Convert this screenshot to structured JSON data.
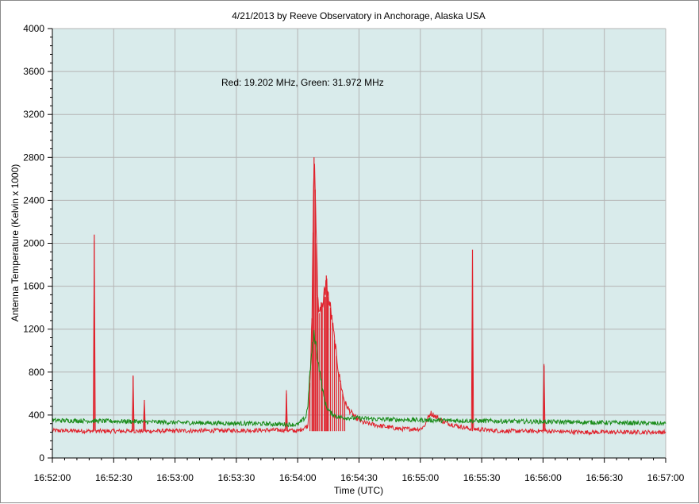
{
  "chart_data": {
    "type": "line",
    "title": "4/21/2013  by  Reeve Observatory  in  Anchorage, Alaska  USA",
    "annotation": "Red: 19.202 MHz, Green: 31.972 MHz",
    "xlabel": "Time (UTC)",
    "ylabel": "Antenna Temperature (Kelvin x 1000)",
    "x_unit": "seconds since 16:52:00 (UTC)",
    "xlim": [
      0,
      300
    ],
    "ylim": [
      0,
      4000
    ],
    "x_ticks": [
      "16:52:00",
      "16:52:30",
      "16:53:00",
      "16:53:30",
      "16:54:00",
      "16:54:30",
      "16:55:00",
      "16:55:30",
      "16:56:00",
      "16:56:30",
      "16:57:00"
    ],
    "y_ticks": [
      "0",
      "400",
      "800",
      "1200",
      "1600",
      "2000",
      "2400",
      "2800",
      "3200",
      "3600",
      "4000"
    ],
    "grid": true,
    "plot_background": "#d9ebeb",
    "series": [
      {
        "name": "Red: 19.202 MHz",
        "color": "#e0202a",
        "baseline": 250,
        "points": [
          [
            0,
            255
          ],
          [
            20,
            250
          ],
          [
            20.5,
            2080
          ],
          [
            21,
            250
          ],
          [
            39,
            250
          ],
          [
            39.5,
            760
          ],
          [
            40,
            250
          ],
          [
            44.5,
            250
          ],
          [
            45,
            540
          ],
          [
            45.5,
            250
          ],
          [
            114,
            260
          ],
          [
            114.5,
            600
          ],
          [
            115,
            260
          ],
          [
            120,
            250
          ],
          [
            125,
            300
          ],
          [
            126,
            700
          ],
          [
            127,
            1300
          ],
          [
            127.5,
            2100
          ],
          [
            128,
            2800
          ],
          [
            128.6,
            2500
          ],
          [
            129.2,
            2000
          ],
          [
            129.8,
            1500
          ],
          [
            130.5,
            1350
          ],
          [
            131.5,
            1450
          ],
          [
            132,
            1400
          ],
          [
            133,
            1550
          ],
          [
            133.5,
            1500
          ],
          [
            134,
            1700
          ],
          [
            134.5,
            1550
          ],
          [
            135,
            1500
          ],
          [
            136,
            1400
          ],
          [
            137,
            1250
          ],
          [
            138,
            1100
          ],
          [
            139,
            950
          ],
          [
            140,
            800
          ],
          [
            141,
            700
          ],
          [
            142,
            600
          ],
          [
            143,
            520
          ],
          [
            145,
            450
          ],
          [
            148,
            380
          ],
          [
            152,
            330
          ],
          [
            160,
            300
          ],
          [
            170,
            270
          ],
          [
            180,
            270
          ],
          [
            182,
            300
          ],
          [
            185,
            420
          ],
          [
            188,
            380
          ],
          [
            192,
            330
          ],
          [
            200,
            290
          ],
          [
            205,
            270
          ],
          [
            205.5,
            1940
          ],
          [
            206,
            270
          ],
          [
            220,
            250
          ],
          [
            230,
            250
          ],
          [
            240,
            250
          ],
          [
            240.5,
            860
          ],
          [
            241,
            250
          ],
          [
            260,
            240
          ],
          [
            280,
            240
          ],
          [
            300,
            240
          ]
        ]
      },
      {
        "name": "Green: 31.972 MHz",
        "color": "#1a8c1a",
        "baseline": 350,
        "points": [
          [
            0,
            350
          ],
          [
            40,
            340
          ],
          [
            60,
            330
          ],
          [
            100,
            320
          ],
          [
            120,
            310
          ],
          [
            124,
            380
          ],
          [
            125,
            500
          ],
          [
            126,
            800
          ],
          [
            127,
            1000
          ],
          [
            128,
            1150
          ],
          [
            129,
            1050
          ],
          [
            130,
            900
          ],
          [
            131,
            780
          ],
          [
            132,
            650
          ],
          [
            133,
            550
          ],
          [
            134,
            480
          ],
          [
            136,
            420
          ],
          [
            140,
            380
          ],
          [
            160,
            360
          ],
          [
            190,
            350
          ],
          [
            230,
            340
          ],
          [
            270,
            330
          ],
          [
            300,
            320
          ]
        ]
      }
    ]
  }
}
